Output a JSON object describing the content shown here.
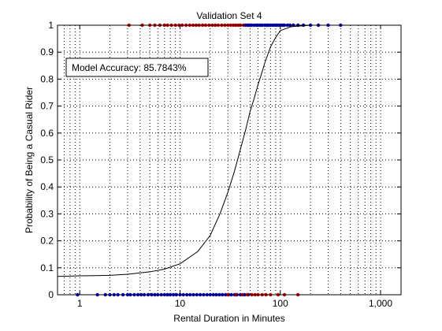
{
  "chart_data": {
    "type": "scatter",
    "title": "Validation Set 4",
    "xlabel": "Rental Duration in Minutes",
    "ylabel": "Probability of Being a Casual Rider",
    "x_scale": "log",
    "xlim": [
      0.6,
      1600
    ],
    "ylim": [
      0,
      1
    ],
    "grid": true,
    "x_ticks": [
      {
        "value": 1,
        "label": "1"
      },
      {
        "value": 10,
        "label": "10"
      },
      {
        "value": 100,
        "label": "100"
      },
      {
        "value": 1000,
        "label": "1,000"
      }
    ],
    "y_ticks": [
      {
        "value": 0,
        "label": "0"
      },
      {
        "value": 0.1,
        "label": "0.1"
      },
      {
        "value": 0.2,
        "label": "0.2"
      },
      {
        "value": 0.3,
        "label": "0.3"
      },
      {
        "value": 0.4,
        "label": "0.4"
      },
      {
        "value": 0.5,
        "label": "0.5"
      },
      {
        "value": 0.6,
        "label": "0.6"
      },
      {
        "value": 0.7,
        "label": "0.7"
      },
      {
        "value": 0.8,
        "label": "0.8"
      },
      {
        "value": 0.9,
        "label": "0.9"
      },
      {
        "value": 1,
        "label": "1"
      }
    ],
    "annotation": "Model Accuracy: 85.7843%",
    "curve": {
      "color": "#000000",
      "x": [
        0.6,
        1,
        2,
        3,
        5,
        7,
        10,
        15,
        20,
        25,
        30,
        35,
        40,
        45,
        50,
        55,
        60,
        65,
        70,
        80,
        90,
        100,
        130,
        200,
        500,
        1600
      ],
      "y": [
        0.068,
        0.07,
        0.072,
        0.076,
        0.085,
        0.095,
        0.115,
        0.16,
        0.22,
        0.3,
        0.38,
        0.46,
        0.54,
        0.61,
        0.68,
        0.73,
        0.78,
        0.82,
        0.86,
        0.92,
        0.955,
        0.98,
        0.995,
        1.0,
        1.0,
        1.0
      ]
    },
    "series": [
      {
        "color": "#cc0000",
        "y": 1,
        "x": [
          3.1,
          4.2,
          5.0,
          5.6,
          6.3,
          7.0,
          7.5,
          8.2,
          9.0,
          9.8,
          10.5,
          11.5,
          12.5,
          13.5,
          14.5,
          15.5,
          16.8,
          18.0,
          19.5,
          21.0,
          22.5,
          24.0,
          26.0,
          28.0,
          30.0,
          32.0,
          34.0,
          36.0,
          38.0,
          40.0,
          43.0,
          47.0
        ]
      },
      {
        "color": "#0000cc",
        "y": 1,
        "x": [
          45,
          48,
          50,
          52,
          55,
          58,
          60,
          63,
          66,
          70,
          73,
          76,
          80,
          84,
          88,
          92,
          96,
          100,
          105,
          110,
          118,
          125,
          135,
          150,
          170,
          200,
          240,
          300,
          400
        ]
      },
      {
        "color": "#0000cc",
        "y": 0,
        "x": [
          0.95,
          1.5,
          1.8,
          2.0,
          2.2,
          2.4,
          2.7,
          3.0,
          3.2,
          3.5,
          3.8,
          4.1,
          4.4,
          4.8,
          5.2,
          5.6,
          6.0,
          6.5,
          7.0,
          7.5,
          8.0,
          8.6,
          9.2,
          10.0,
          10.8,
          11.7,
          12.6,
          13.6,
          14.7,
          15.9,
          17.2,
          18.6,
          20.0,
          21.5,
          23.0,
          24.7,
          26.5,
          28.5,
          30.5,
          32.5,
          35.0,
          37.0,
          40.0,
          44.0,
          48.0
        ]
      },
      {
        "color": "#cc0000",
        "y": 0,
        "x": [
          30,
          36,
          42,
          47,
          52,
          56,
          60,
          66,
          72,
          80,
          95,
          110,
          150
        ]
      }
    ]
  }
}
